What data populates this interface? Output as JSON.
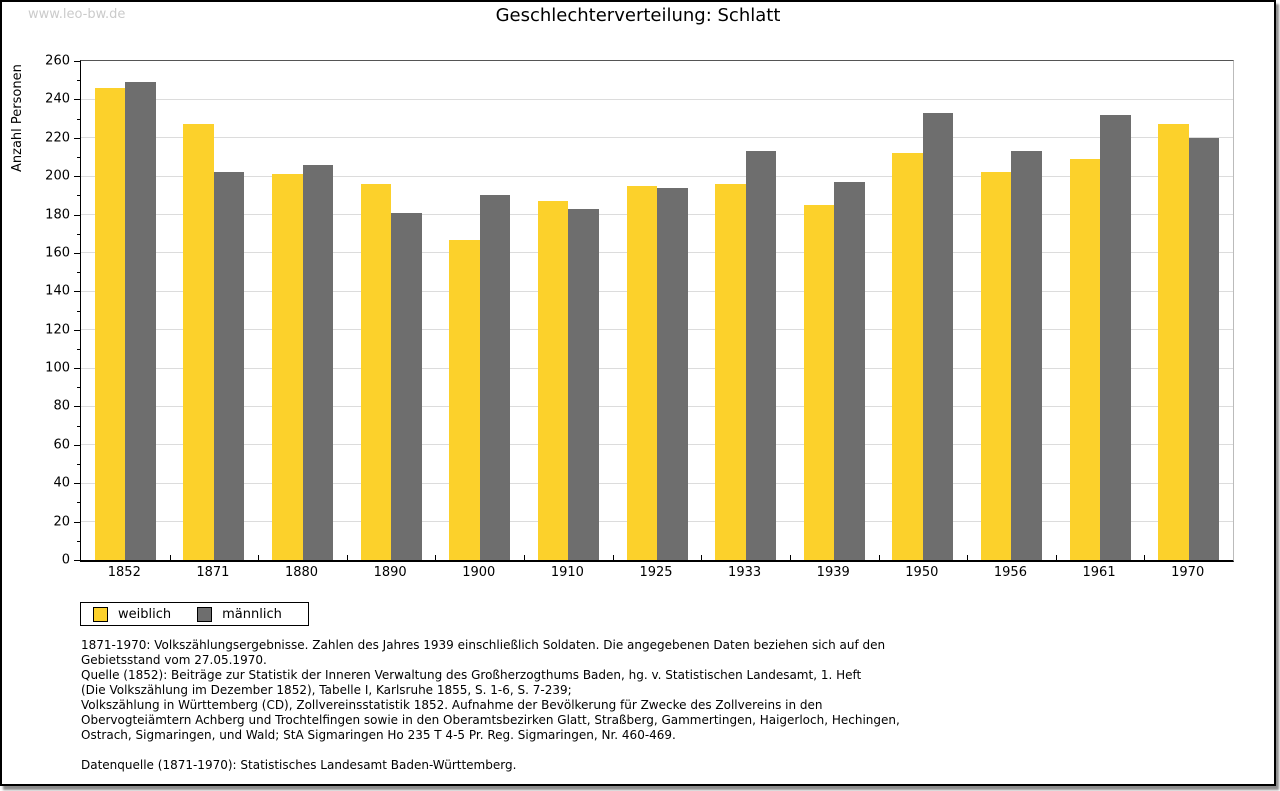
{
  "page": {
    "watermark": "www.leo-bw.de",
    "title": "Geschlechterverteilung: Schlatt"
  },
  "chart_data": {
    "type": "bar",
    "title": "Geschlechterverteilung: Schlatt",
    "xlabel": "",
    "ylabel": "Anzahl Personen",
    "ylim": [
      0,
      260
    ],
    "ytick_step": 20,
    "ytick_minor_step": 10,
    "yticks": [
      0,
      20,
      40,
      60,
      80,
      100,
      120,
      140,
      160,
      180,
      200,
      220,
      240,
      260
    ],
    "grid": true,
    "legend_position": "bottom-left",
    "categories": [
      "1852",
      "1871",
      "1880",
      "1890",
      "1900",
      "1910",
      "1925",
      "1933",
      "1939",
      "1950",
      "1956",
      "1961",
      "1970"
    ],
    "series": [
      {
        "name": "weiblich",
        "color": "#FCD12B",
        "values": [
          246,
          227,
          201,
          196,
          167,
          187,
          195,
          196,
          185,
          212,
          202,
          209,
          227
        ]
      },
      {
        "name": "männlich",
        "color": "#6E6E6E",
        "values": [
          249,
          202,
          206,
          181,
          190,
          183,
          194,
          213,
          197,
          233,
          213,
          232,
          220
        ]
      }
    ]
  },
  "colors": {
    "female": "#FCD12B",
    "male": "#6E6E6E",
    "gridline": "#DCDCDC",
    "watermark": "#CBCBCB"
  },
  "footer": {
    "lines": [
      "1871-1970: Volkszählungsergebnisse. Zahlen des Jahres 1939 einschließlich Soldaten. Die angegebenen Daten beziehen sich auf den",
      "Gebietsstand vom 27.05.1970.",
      "Quelle (1852): Beiträge zur Statistik der Inneren Verwaltung des Großherzogthums Baden, hg. v. Statistischen Landesamt, 1. Heft",
      "(Die Volkszählung im Dezember 1852), Tabelle I, Karlsruhe 1855, S. 1-6, S. 7-239;",
      "Volkszählung in Württemberg (CD), Zollvereinsstatistik 1852. Aufnahme der Bevölkerung für Zwecke des Zollvereins in den",
      "Obervogteiämtern Achberg und Trochtelfingen sowie in den Oberamtsbezirken Glatt, Straßberg, Gammertingen, Haigerloch, Hechingen,",
      "Ostrach, Sigmaringen, und Wald; StA Sigmaringen Ho 235 T 4-5 Pr. Reg. Sigmaringen, Nr. 460-469."
    ],
    "datasource": "Datenquelle (1871-1970): Statistisches Landesamt Baden-Württemberg."
  }
}
